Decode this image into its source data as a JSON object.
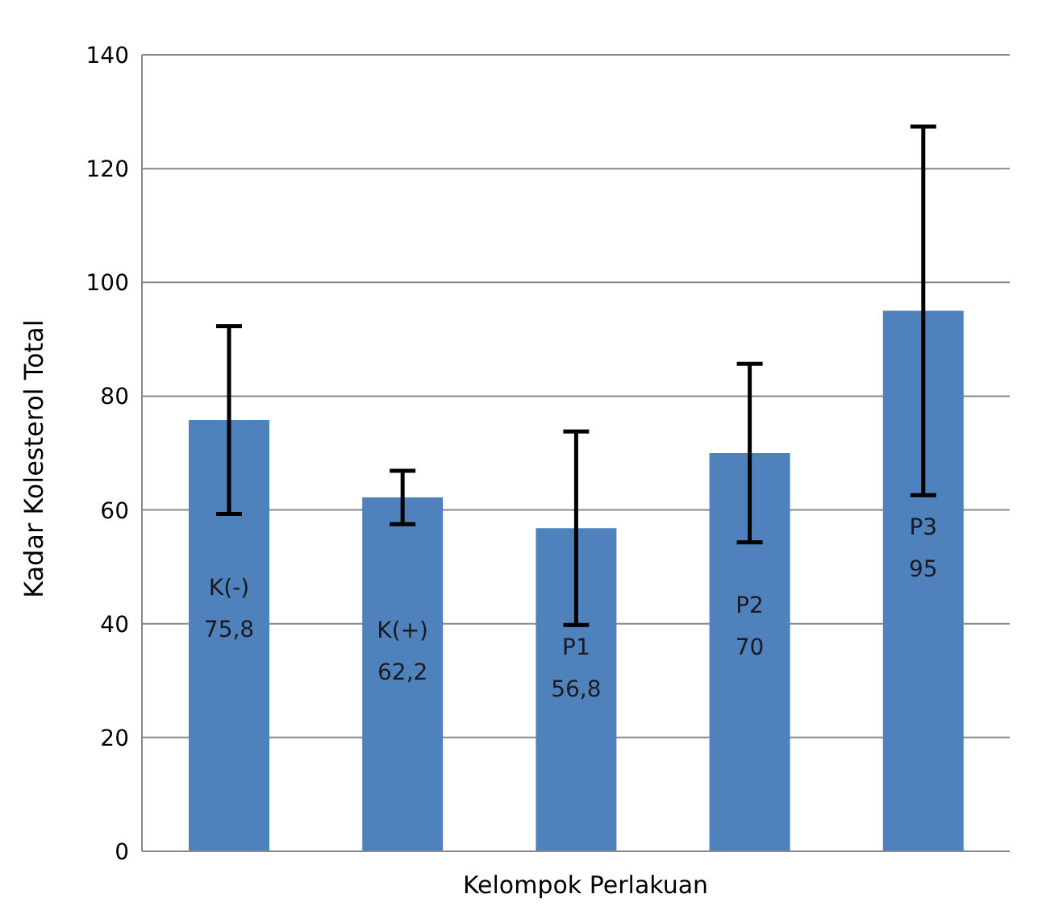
{
  "chart_data": {
    "type": "bar",
    "ylabel": "Kadar Kolesterol Total",
    "xlabel": "Kelompok Perlakuan",
    "categories": [
      "K(-)",
      "K(+)",
      "P1",
      "P2",
      "P3"
    ],
    "values": [
      75.8,
      62.2,
      56.8,
      70,
      95
    ],
    "value_labels": [
      "75,8",
      "62,2",
      "56,8",
      "70",
      "95"
    ],
    "errors": [
      16.5,
      4.7,
      17,
      15.7,
      32.4
    ],
    "color": "#4f81bd",
    "ylim": [
      0,
      140
    ],
    "yticks": [
      0,
      20,
      40,
      60,
      80,
      100,
      120,
      140
    ],
    "grid": "y",
    "tick_labels": "y"
  }
}
